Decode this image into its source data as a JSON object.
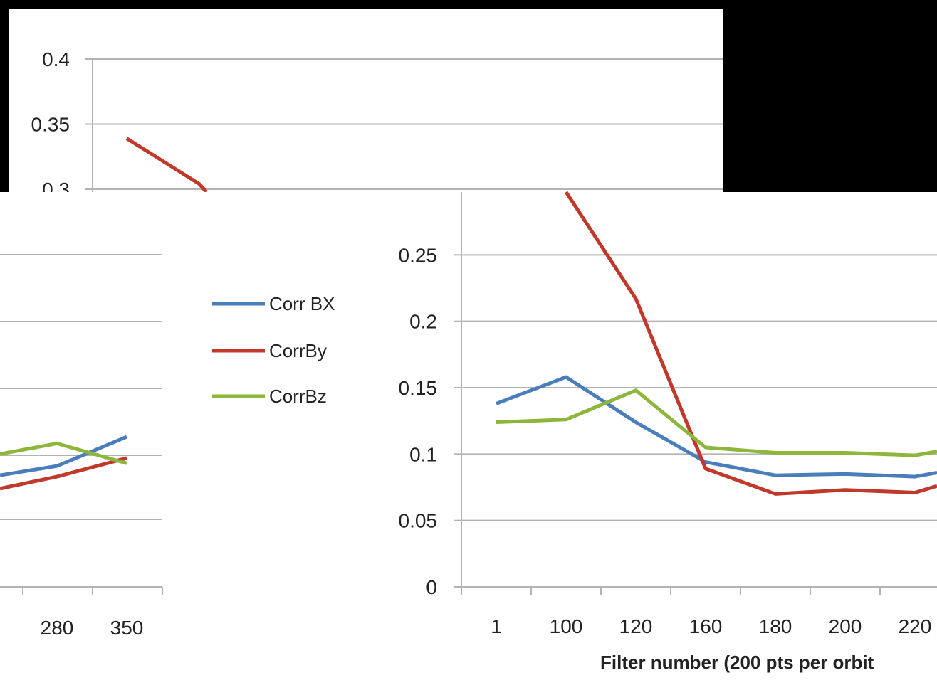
{
  "chart_data": [
    {
      "panel": "top-left-fragment",
      "type": "line",
      "y_ticks": [
        "0.4",
        "0.35",
        "0.3"
      ],
      "ylim": [
        0.3,
        0.4
      ],
      "series": [
        {
          "color": "#c0392b",
          "x": [
            350,
            280
          ],
          "values": [
            0.339,
            0.304
          ]
        }
      ]
    },
    {
      "panel": "left-fragment",
      "type": "line",
      "categories": [
        "280",
        "350"
      ],
      "series": [
        {
          "name": "Corr BX",
          "color": "#4a7ebb",
          "values": [
            0.091,
            0.113
          ]
        },
        {
          "name": "CorrBy",
          "color": "#c0392b",
          "values": [
            0.083,
            0.097
          ]
        },
        {
          "name": "CorrBz",
          "color": "#8db63c",
          "values": [
            0.108,
            0.093
          ]
        }
      ]
    },
    {
      "panel": "main",
      "type": "line",
      "categories": [
        "1",
        "100",
        "120",
        "160",
        "180",
        "200",
        "220"
      ],
      "y_ticks": [
        "0.25",
        "0.2",
        "0.15",
        "0.1",
        "0.05",
        "0"
      ],
      "ylim": [
        0,
        0.3
      ],
      "xlabel": "Filter number (200 pts per orbit",
      "legend": {
        "items": [
          "Corr BX",
          "CorrBy",
          "CorrBz"
        ],
        "placement": "left"
      },
      "series": [
        {
          "name": "Corr BX",
          "color": "#4a7ebb",
          "values": [
            0.138,
            0.158,
            0.124,
            0.094,
            0.084,
            0.085,
            0.083
          ]
        },
        {
          "name": "CorrBy",
          "color": "#c0392b",
          "values": [
            0.3,
            0.3,
            0.217,
            0.089,
            0.07,
            0.073,
            0.071
          ]
        },
        {
          "name": "CorrBz",
          "color": "#8db63c",
          "values": [
            0.124,
            0.126,
            0.148,
            0.105,
            0.101,
            0.101,
            0.099
          ]
        }
      ]
    }
  ]
}
